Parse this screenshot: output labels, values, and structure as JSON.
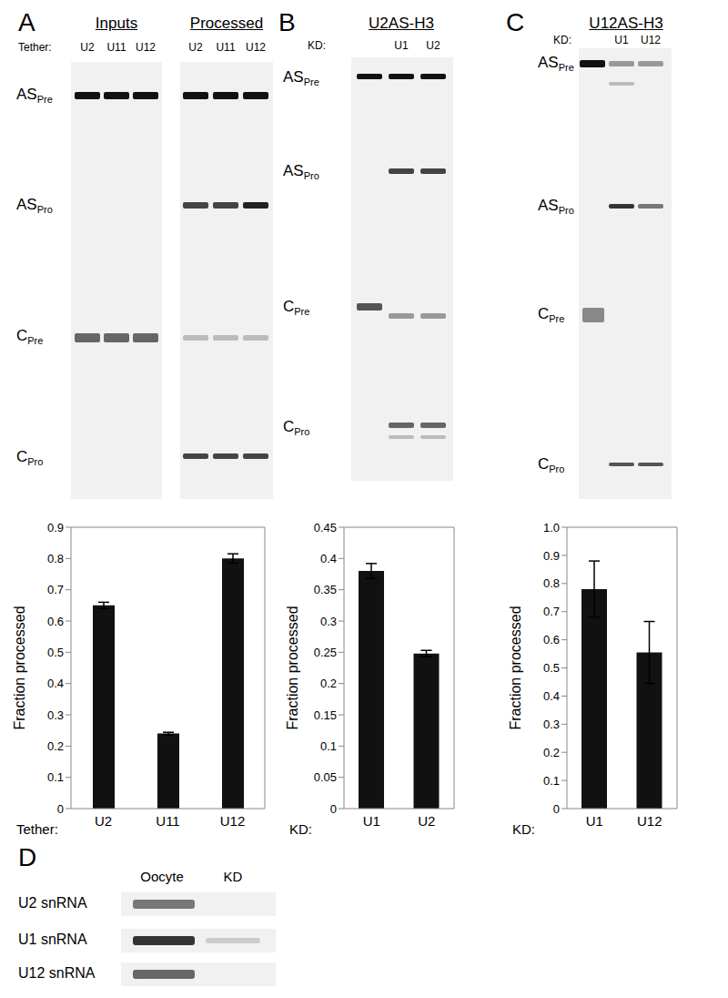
{
  "panel_labels": [
    "A",
    "B",
    "C",
    "D"
  ],
  "gels": [
    {
      "groups": [
        {
          "title": "Inputs",
          "lanes": [
            "U2",
            "U11",
            "U12"
          ]
        },
        {
          "title": "Processed",
          "lanes": [
            "U2",
            "U11",
            "U12"
          ]
        }
      ],
      "lane_prefix": "Tether:",
      "band_labels": [
        {
          "text": "AS",
          "sub": "Pre"
        },
        {
          "text": "AS",
          "sub": "Pro"
        },
        {
          "text": "C",
          "sub": "Pre"
        },
        {
          "text": "C",
          "sub": "Pro"
        }
      ]
    },
    {
      "title": "U2AS-H3",
      "lane_prefix": "KD:",
      "lanes": [
        null,
        "U1",
        "U2"
      ],
      "band_labels": [
        {
          "text": "AS",
          "sub": "Pre"
        },
        {
          "text": "AS",
          "sub": "Pro"
        },
        {
          "text": "C",
          "sub": "Pre"
        },
        {
          "text": "C",
          "sub": "Pro"
        }
      ]
    },
    {
      "title": "U12AS-H3",
      "lane_prefix": "KD:",
      "lanes": [
        null,
        "U1",
        "U12"
      ],
      "band_labels": [
        {
          "text": "AS",
          "sub": "Pre"
        },
        {
          "text": "AS",
          "sub": "Pro"
        },
        {
          "text": "C",
          "sub": "Pre"
        },
        {
          "text": "C",
          "sub": "Pro"
        }
      ]
    }
  ],
  "chart_data": [
    {
      "type": "bar",
      "categories": [
        "U2",
        "U11",
        "U12"
      ],
      "values": [
        0.65,
        0.24,
        0.8
      ],
      "errors": [
        0.01,
        0.004,
        0.015
      ],
      "color": "#111111",
      "ylim": [
        0,
        0.9
      ],
      "yticks": [
        0,
        0.1,
        0.2,
        0.3,
        0.4,
        0.5,
        0.6,
        0.7,
        0.8,
        0.9
      ],
      "y_label": "Fraction processed",
      "x_label": "Tether:"
    },
    {
      "type": "bar",
      "categories": [
        "U1",
        "U2"
      ],
      "values": [
        0.38,
        0.248
      ],
      "errors": [
        0.012,
        0.005
      ],
      "color": "#111111",
      "ylim": [
        0,
        0.45
      ],
      "yticks": [
        0,
        0.05,
        0.1,
        0.15,
        0.2,
        0.25,
        0.3,
        0.35,
        0.4,
        0.45
      ],
      "y_label": "Fraction processed",
      "x_label": "KD:"
    },
    {
      "type": "bar",
      "categories": [
        "U1",
        "U12"
      ],
      "values": [
        0.78,
        0.555
      ],
      "errors": [
        0.1,
        0.11
      ],
      "color": "#111111",
      "ylim": [
        0,
        1
      ],
      "yticks": [
        0,
        0.1,
        0.2,
        0.3,
        0.4,
        0.5,
        0.6,
        0.7,
        0.8,
        0.9,
        {
          "value": 1,
          "label": "1.0"
        }
      ],
      "y_label": "Fraction processed",
      "x_label": "KD:"
    }
  ],
  "northern": {
    "columns": [
      "Oocyte",
      "KD"
    ],
    "rows": [
      "U2 snRNA",
      "U1 snRNA",
      "U12 snRNA"
    ]
  }
}
